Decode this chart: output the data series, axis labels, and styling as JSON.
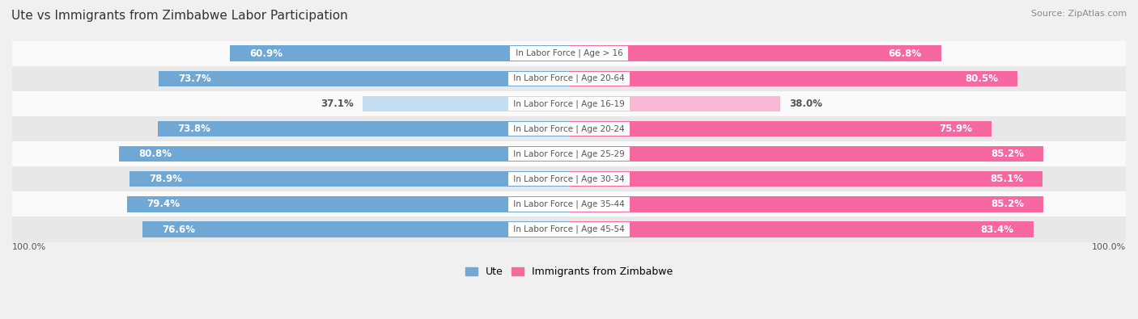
{
  "title": "Ute vs Immigrants from Zimbabwe Labor Participation",
  "source": "Source: ZipAtlas.com",
  "categories": [
    "In Labor Force | Age > 16",
    "In Labor Force | Age 20-64",
    "In Labor Force | Age 16-19",
    "In Labor Force | Age 20-24",
    "In Labor Force | Age 25-29",
    "In Labor Force | Age 30-34",
    "In Labor Force | Age 35-44",
    "In Labor Force | Age 45-54"
  ],
  "ute_values": [
    60.9,
    73.7,
    37.1,
    73.8,
    80.8,
    78.9,
    79.4,
    76.6
  ],
  "zim_values": [
    66.8,
    80.5,
    38.0,
    75.9,
    85.2,
    85.1,
    85.2,
    83.4
  ],
  "ute_color_strong": "#6fa8d5",
  "ute_color_light": "#c5ddf0",
  "zim_color_strong": "#f768a1",
  "zim_color_light": "#f9b8d3",
  "label_color_dark": "#555555",
  "bg_color": "#f0f0f0",
  "row_bg_light": "#fafafa",
  "row_bg_dark": "#e8e8e8",
  "title_fontsize": 11,
  "source_fontsize": 8,
  "bar_label_fontsize": 8.5,
  "category_fontsize": 7.5,
  "legend_fontsize": 9,
  "axis_label_fontsize": 8,
  "max_value": 100.0,
  "footer_label": "100.0%",
  "light_rows": [
    2
  ]
}
